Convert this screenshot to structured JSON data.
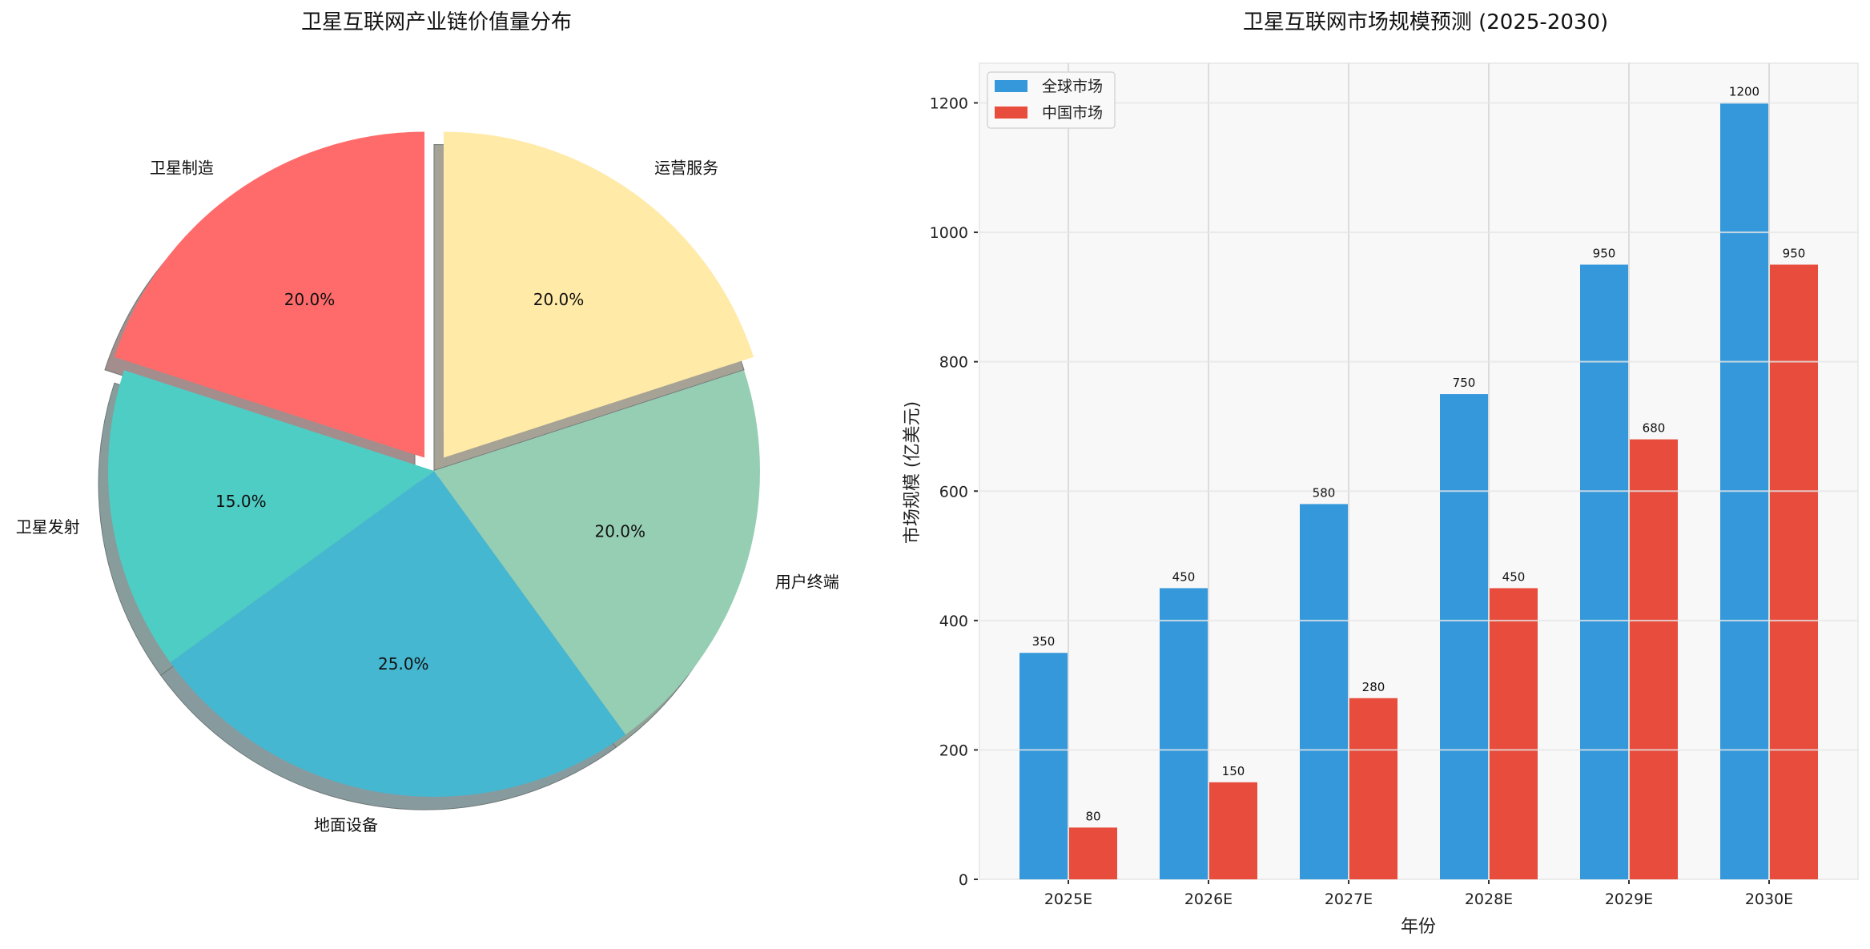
{
  "chart_data": [
    {
      "type": "pie",
      "title": "卫星互联网产业链价值量分布",
      "categories": [
        "卫星制造",
        "卫星发射",
        "地面设备",
        "用户终端",
        "运营服务"
      ],
      "values": [
        20.0,
        15.0,
        25.0,
        20.0,
        20.0
      ],
      "value_labels": [
        "20.0%",
        "15.0%",
        "25.0%",
        "20.0%",
        "20.0%"
      ],
      "colors": [
        "#FF6B6B",
        "#4ECDC4",
        "#45B7D1",
        "#96CEB4",
        "#FFEAA7"
      ],
      "explode": [
        0.05,
        0,
        0,
        0,
        0.05
      ],
      "start_angle": 90,
      "shadow": true
    },
    {
      "type": "bar",
      "title": "卫星互联网市场规模预测 (2025-2030)",
      "xlabel": "年份",
      "ylabel": "市场规模 (亿美元)",
      "categories": [
        "2025E",
        "2026E",
        "2027E",
        "2028E",
        "2029E",
        "2030E"
      ],
      "series": [
        {
          "name": "全球市场",
          "color": "#3498DB",
          "values": [
            350,
            450,
            580,
            750,
            950,
            1200
          ]
        },
        {
          "name": "中国市场",
          "color": "#E74C3C",
          "values": [
            80,
            150,
            280,
            450,
            680,
            950
          ]
        }
      ],
      "yticks": [
        0,
        200,
        400,
        600,
        800,
        1000,
        1200
      ],
      "ylim": [
        0,
        1260
      ],
      "grid": true,
      "legend_position": "upper left"
    }
  ]
}
